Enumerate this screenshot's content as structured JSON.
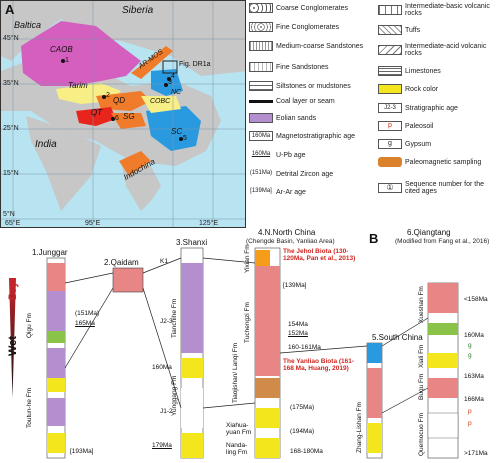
{
  "map": {
    "panel_label": "A",
    "regions": {
      "baltica": "Baltica",
      "siberia": "Siberia",
      "caob": "CAOB",
      "tarim": "Tarim",
      "qd": "QD",
      "qt": "QT",
      "sg": "SG",
      "cobc": "COBC",
      "nc": "NC",
      "sc": "SC",
      "india": "India",
      "indochina": "Indochina",
      "armos": "AR-MOS",
      "fig": "Fig. DR1a"
    },
    "site_numbers": [
      "1",
      "2",
      "3",
      "4",
      "5",
      "6"
    ],
    "lat_ticks": [
      "45°N",
      "35°N",
      "25°N",
      "15°N",
      "5°N"
    ],
    "lon_ticks": [
      "65°E",
      "95°E",
      "125°E"
    ]
  },
  "legend": {
    "left": [
      {
        "label": "Coarse Conglomerates",
        "color": "#ffffff"
      },
      {
        "label": "Fine Conglomerates",
        "color": "#ffffff"
      },
      {
        "label": "Medium-coarse Sandstones",
        "color": "#ffffff"
      },
      {
        "label": "Fine Sandstones",
        "color": "#ffffff"
      },
      {
        "label": "Siltstones or mudstones",
        "color": "#ffffff"
      },
      {
        "label": "Coal layer or seam",
        "color": "#ffffff"
      },
      {
        "label": "Eolian sands",
        "color": "#b48fd0"
      },
      {
        "label": "Magnetostratigraphic age",
        "color": "#ffffff",
        "code": "160Ma"
      },
      {
        "label": "U-Pb age",
        "color": "#ffffff",
        "code": "160Ma"
      },
      {
        "label": "Detrital Zircon age",
        "color": "#ffffff",
        "code": "(151Ma)"
      },
      {
        "label": "Ar-Ar age",
        "color": "#ffffff",
        "code": "[139Ma]"
      }
    ],
    "right": [
      {
        "label": "Intermediate-basic volcanic rocks",
        "color": "#ffffff"
      },
      {
        "label": "Tuffs",
        "color": "#ffffff"
      },
      {
        "label": "Intermediate-acid volcanic rocks",
        "color": "#ffffff"
      },
      {
        "label": "Limestones",
        "color": "#ffffff"
      },
      {
        "label": "Rock color",
        "color": "#f4e61c"
      },
      {
        "label": "Stratigraphic age",
        "color": "#ffffff",
        "code": "J2-3"
      },
      {
        "label": "Paleosoil",
        "color": "#ffffff",
        "code": "p"
      },
      {
        "label": "Gypsum",
        "color": "#ffffff",
        "code": "g"
      },
      {
        "label": "Paleomagnetic sampling",
        "color": "#ffffff"
      },
      {
        "label": "Sequence number for the cited ages",
        "color": "#ffffff",
        "code": "①"
      }
    ]
  },
  "sections": {
    "panel_b": "B",
    "climate_wet": "Wet",
    "climate_dry": "Dry",
    "junggar": {
      "title": "1.Junggar",
      "formations": [
        "Qigu Fm",
        "Toutun-he Fm"
      ],
      "ages": [
        "(151Ma)",
        "165Ma",
        "[193Ma]"
      ]
    },
    "qaidam": {
      "title": "2.Qaidam"
    },
    "shanxi": {
      "title": "3.Shanxi",
      "formations": [
        "Tianchihe Fm",
        "Yunggang Fm"
      ],
      "periods": [
        "K1",
        "J2-3",
        "J1-2"
      ],
      "ages": [
        "160Ma",
        "179Ma"
      ]
    },
    "nchina": {
      "title": "4.N.North China",
      "subtitle": "(Chengde Basin, Yanliao Area)",
      "formations": [
        "Yixian Fm",
        "Tuchengzi Fm",
        "Tiaojishan/ Lanqi Fm",
        "Xiahua-yuan Fm",
        "Nanda-ling Fm"
      ],
      "jehol": "The Jehol Biota (130-120Ma, Pan et al., 2013)",
      "yanliao": "The Yanliao Biota (161-168 Ma, Huang, 2019)",
      "ages": [
        "[139Ma]",
        "154Ma",
        "152Ma",
        "160-161Ma",
        "(175Ma)",
        "(194Ma)",
        "168-180Ma"
      ]
    },
    "schina": {
      "title": "5.South China",
      "formations": [
        "Zhang-Lishan Fm"
      ]
    },
    "qiangtang": {
      "title": "6.Qiangtang",
      "subtitle": "(Modified from Fang et al., 2016)",
      "formations": [
        "Xueshan Fm",
        "Xiali Fm",
        "Buqu Fm",
        "Quemocuo Fm"
      ],
      "ages": [
        "<158Ma",
        "160Ma",
        "163Ma",
        "166Ma",
        ">171Ma"
      ],
      "marks": [
        "g",
        "g",
        "p",
        "p"
      ]
    }
  }
}
